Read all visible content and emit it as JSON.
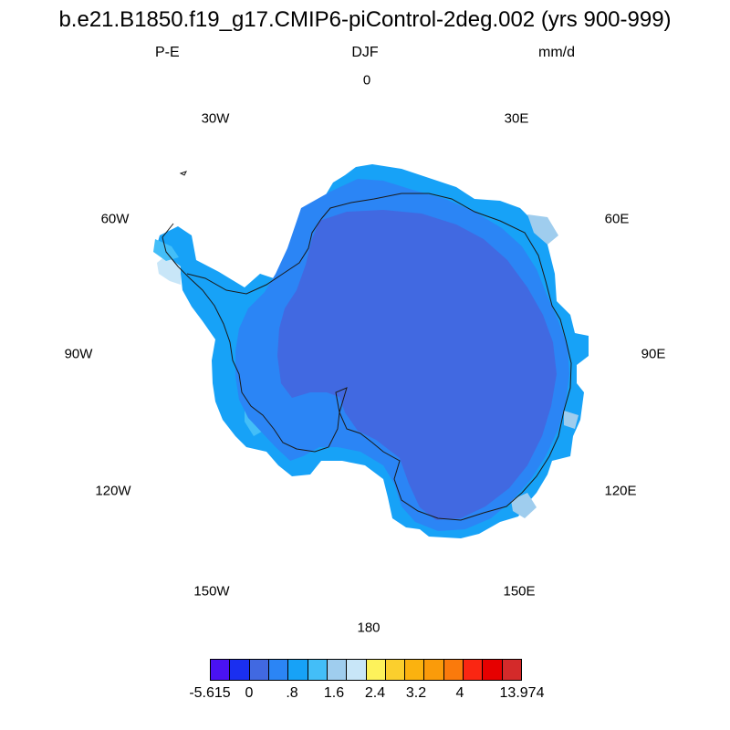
{
  "title": "b.e21.B1850.f19_g17.CMIP6-piControl-2deg.002 (yrs 900-999)",
  "subtitle": {
    "left": "P-E",
    "center": "DJF",
    "right": "mm/d"
  },
  "longitude_labels": [
    "0",
    "30E",
    "60E",
    "90E",
    "120E",
    "150E",
    "180",
    "150W",
    "120W",
    "90W",
    "60W",
    "30W"
  ],
  "colorbar": {
    "colors": [
      "#4a12f2",
      "#1a2ff0",
      "#4169e1",
      "#2b85f5",
      "#17a2f7",
      "#43bef8",
      "#9fcdee",
      "#c8e6f8",
      "#fdf25b",
      "#fbcf2d",
      "#fbb20f",
      "#fa9b0a",
      "#fa7a0c",
      "#fa2612",
      "#e60000",
      "#d42a2a"
    ],
    "labels": [
      "-5.615",
      "0",
      ".8",
      "1.6",
      "2.4",
      "3.2",
      "4",
      "13.974"
    ]
  },
  "map": {
    "projection": "south-polar-stereographic",
    "colors": {
      "interior": "#4169e1",
      "coast": "#2b85f5",
      "ocean_edge": "#17a2f7",
      "light": "#43bef8",
      "pale": "#9fcdee",
      "palest": "#c8e6f8"
    }
  }
}
